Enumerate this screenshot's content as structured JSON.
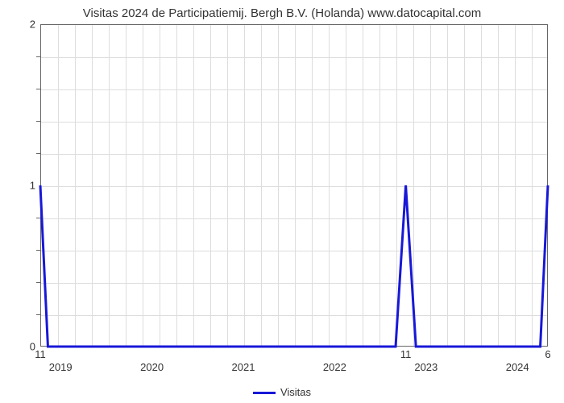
{
  "chart": {
    "type": "line",
    "title": "Visitas 2024 de Participatiemij. Bergh B.V. (Holanda) www.datocapital.com",
    "title_fontsize": 15,
    "title_color": "#333333",
    "background_color": "#ffffff",
    "plot_border_color": "#666666",
    "grid_color": "#dddddd",
    "line_color": "#1818d8",
    "line_width": 3,
    "ylim": [
      0,
      2
    ],
    "yticks": [
      0,
      1,
      2
    ],
    "y_minor_ticks": 4,
    "x_years": [
      "2019",
      "2020",
      "2021",
      "2022",
      "2023",
      "2024"
    ],
    "x_positions": [
      0.04,
      0.22,
      0.4,
      0.58,
      0.76,
      0.94
    ],
    "data_points": [
      {
        "x": 0.0,
        "y": 1
      },
      {
        "x": 0.015,
        "y": 0
      },
      {
        "x": 0.7,
        "y": 0
      },
      {
        "x": 0.72,
        "y": 1
      },
      {
        "x": 0.74,
        "y": 0
      },
      {
        "x": 0.985,
        "y": 0
      },
      {
        "x": 1.0,
        "y": 1
      }
    ],
    "value_labels": [
      {
        "x": 0.0,
        "text": "11",
        "position": "below"
      },
      {
        "x": 0.72,
        "text": "11",
        "position": "below"
      },
      {
        "x": 1.0,
        "text": "6",
        "position": "below"
      }
    ],
    "legend_label": "Visitas",
    "tick_fontsize": 13,
    "tick_color": "#333333"
  }
}
